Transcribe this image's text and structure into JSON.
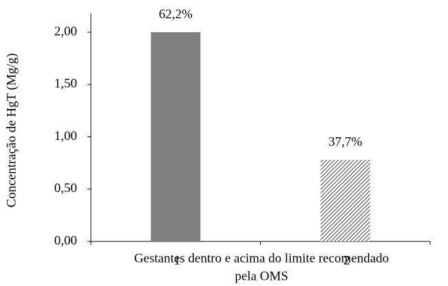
{
  "chart_data": {
    "type": "bar",
    "categories": [
      "1",
      "2"
    ],
    "values": [
      2.0,
      0.78
    ],
    "bar_labels": [
      "62,2%",
      "37,7%"
    ],
    "colors": [
      "#7f7f7f",
      "#595959"
    ],
    "hatch": [
      false,
      true
    ],
    "ylabel": "Concentração de HgT (Mg/g)",
    "xlabel": [
      "Gestantes dentro e acima do limite recomendado",
      "pela OMS"
    ],
    "ylim": [
      0,
      2.2
    ],
    "yticks": [
      {
        "value": 0,
        "label": "0,00"
      },
      {
        "value": 0.5,
        "label": "0,50"
      },
      {
        "value": 1,
        "label": "1,00"
      },
      {
        "value": 1.5,
        "label": "1,50"
      },
      {
        "value": 2,
        "label": "2,00"
      }
    ],
    "grid": false
  }
}
